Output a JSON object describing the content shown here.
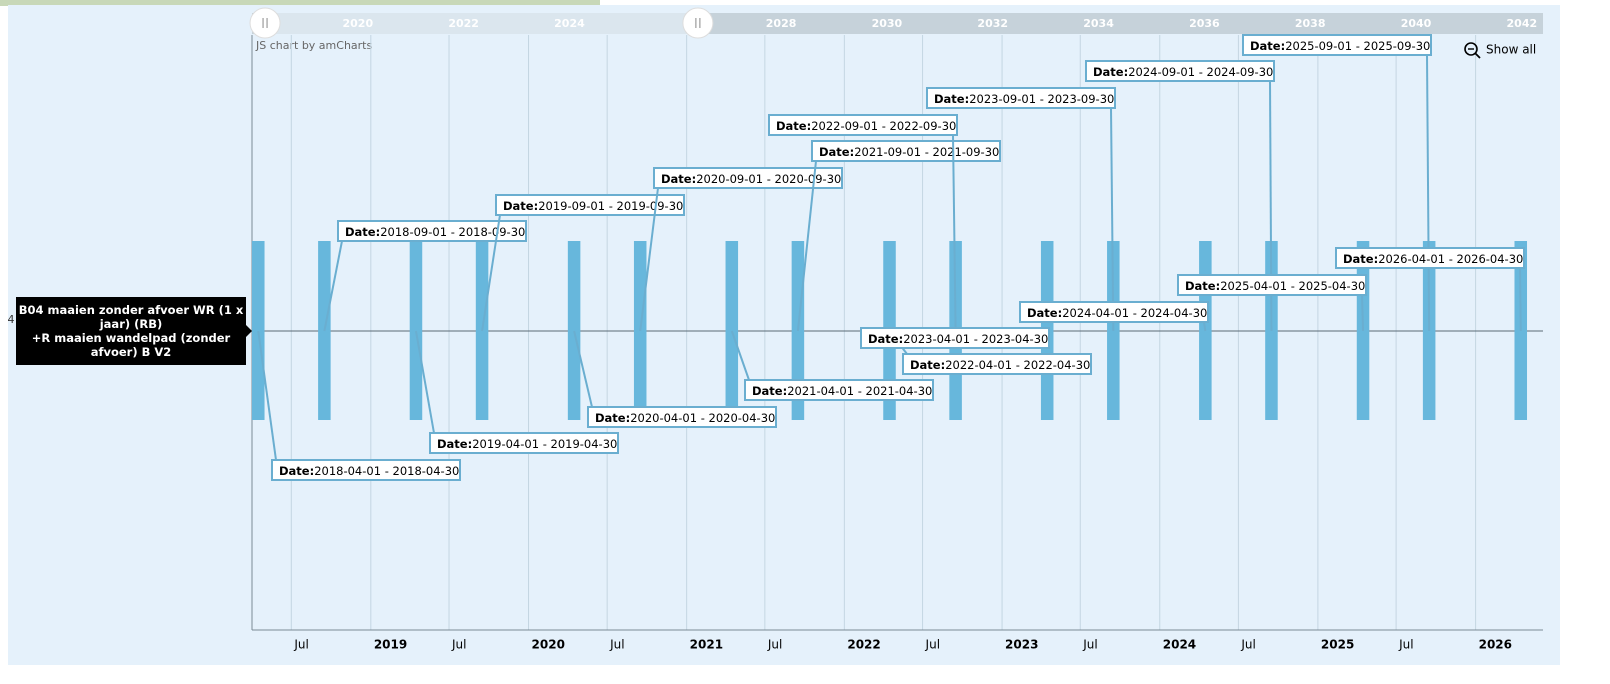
{
  "chart_data": {
    "type": "gantt",
    "watermark": "JS chart by amCharts",
    "reset_zoom": "Show all",
    "categories": [
      "4"
    ],
    "category_tooltip": "B04 maaien zonder afvoer WR (1 x jaar) (RB)\n+R maaien wandelpad (zonder afvoer) B V2",
    "tooltip_key": "Date:",
    "color": "#67b7dc",
    "tasks": {
      "start": [
        "2018-04-01",
        "2018-09-01",
        "2019-04-01",
        "2019-09-01",
        "2020-04-01",
        "2020-09-01",
        "2021-04-01",
        "2021-09-01",
        "2022-04-01",
        "2022-09-01",
        "2023-04-01",
        "2023-09-01",
        "2024-04-01",
        "2024-09-01",
        "2025-04-01",
        "2025-09-01",
        "2026-04-01"
      ],
      "end": [
        "2018-04-30",
        "2018-09-30",
        "2019-04-30",
        "2019-09-30",
        "2020-04-30",
        "2020-09-30",
        "2021-04-30",
        "2021-09-30",
        "2022-04-30",
        "2022-09-30",
        "2023-04-30",
        "2023-09-30",
        "2024-04-30",
        "2024-09-30",
        "2025-04-30",
        "2025-09-30",
        "2026-04-30"
      ],
      "labels": [
        "2018-04-01 - 2018-04-30",
        "2018-09-01 - 2018-09-30",
        "2019-04-01 - 2019-04-30",
        "2019-09-01 - 2019-09-30",
        "2020-04-01 - 2020-04-30",
        "2020-09-01 - 2020-09-30",
        "2021-04-01 - 2021-04-30",
        "2021-09-01 - 2021-09-30",
        "2022-04-01 - 2022-04-30",
        "2022-09-01 - 2022-09-30",
        "2023-04-01 - 2023-04-30",
        "2023-09-01 - 2023-09-30",
        "2024-04-01 - 2024-04-30",
        "2024-09-01 - 2024-09-30",
        "2025-04-01 - 2025-04-30",
        "2025-09-01 - 2025-09-30",
        "2026-04-01 - 2026-04-30"
      ]
    },
    "xlim": [
      "2018-04-01",
      "2026-06-06"
    ],
    "xticks": [
      {
        "value": "2018-07-01",
        "label": "Jul"
      },
      {
        "value": "2019-01-01",
        "label": "2019"
      },
      {
        "value": "2019-07-01",
        "label": "Jul"
      },
      {
        "value": "2020-01-01",
        "label": "2020"
      },
      {
        "value": "2020-07-01",
        "label": "Jul"
      },
      {
        "value": "2021-01-01",
        "label": "2021"
      },
      {
        "value": "2021-07-01",
        "label": "Jul"
      },
      {
        "value": "2022-01-01",
        "label": "2022"
      },
      {
        "value": "2022-07-01",
        "label": "Jul"
      },
      {
        "value": "2023-01-01",
        "label": "2023"
      },
      {
        "value": "2023-07-01",
        "label": "Jul"
      },
      {
        "value": "2024-01-01",
        "label": "2024"
      },
      {
        "value": "2024-07-01",
        "label": "Jul"
      },
      {
        "value": "2025-01-01",
        "label": "2025"
      },
      {
        "value": "2025-07-01",
        "label": "Jul"
      },
      {
        "value": "2026-01-01",
        "label": "2026"
      }
    ],
    "grid": true,
    "scrollbar": {
      "xlim": [
        2018,
        2042.4
      ],
      "xticks": [
        2020,
        2022,
        2024,
        2028,
        2030,
        2032,
        2034,
        2036,
        2038,
        2040,
        2042
      ]
    }
  }
}
